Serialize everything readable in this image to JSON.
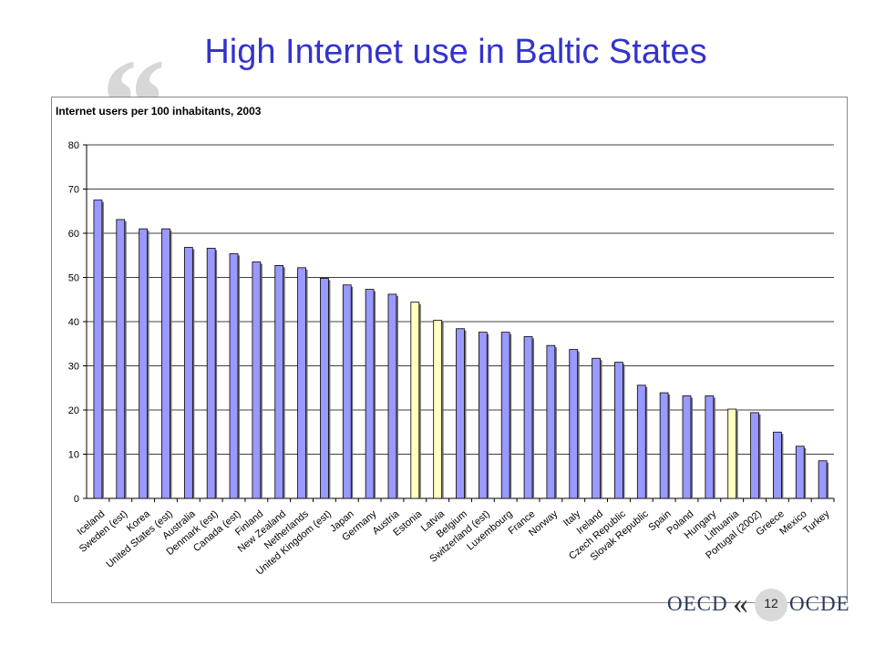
{
  "slide": {
    "title": "High Internet use in Baltic States",
    "quote_mark": "“",
    "page_number": "12"
  },
  "footer": {
    "left_text": "OECD",
    "right_text": "OCDE",
    "logo_mark": "«"
  },
  "colors": {
    "title": "#3333cc",
    "bar_default": "#9999ff",
    "bar_highlight": "#ffffc0",
    "bar_outline": "#000000"
  },
  "chart_data": {
    "type": "bar",
    "title": "Internet users per 100 inhabitants, 2003",
    "categories": [
      "Iceland",
      "Sweden (est)",
      "Korea",
      "United States (est)",
      "Australia",
      "Denmark (est)",
      "Canada (est)",
      "Finland",
      "New Zealand",
      "Netherlands",
      "United Kingdom (est)",
      "Japan",
      "Germany",
      "Austria",
      "Estonia",
      "Latvia",
      "Belgium",
      "Switzerland (est)",
      "Luxembourg",
      "France",
      "Norway",
      "Italy",
      "Ireland",
      "Czech Republic",
      "Slovak Republic",
      "Spain",
      "Poland",
      "Hungary",
      "Lithuania",
      "Portugal (2002)",
      "Greece",
      "Mexico",
      "Turkey"
    ],
    "values": [
      67.5,
      63.1,
      61.0,
      61.0,
      56.8,
      56.6,
      55.4,
      53.5,
      52.7,
      52.2,
      49.8,
      48.3,
      47.3,
      46.2,
      44.4,
      40.3,
      38.4,
      37.6,
      37.6,
      36.6,
      34.6,
      33.7,
      31.7,
      30.8,
      25.6,
      23.9,
      23.2,
      23.2,
      20.2,
      19.4,
      15.0,
      11.8,
      8.5
    ],
    "highlighted": [
      "Estonia",
      "Latvia",
      "Lithuania"
    ],
    "ylim": [
      0,
      80
    ],
    "yticks": [
      0,
      10,
      20,
      30,
      40,
      50,
      60,
      70,
      80
    ],
    "xlabel": "",
    "ylabel": "",
    "grid": true,
    "legend": "none"
  }
}
